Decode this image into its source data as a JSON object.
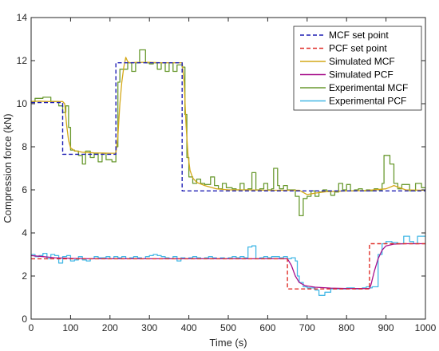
{
  "chart_data": {
    "type": "line",
    "xlabel": "Time (s)",
    "ylabel": "Compression force (kN)",
    "xlim": [
      0,
      1000
    ],
    "ylim": [
      0,
      14
    ],
    "xticks": [
      0,
      100,
      200,
      300,
      400,
      500,
      600,
      700,
      800,
      900,
      1000
    ],
    "yticks": [
      0,
      2,
      4,
      6,
      8,
      10,
      12,
      14
    ],
    "grid": false,
    "legend_position": "top-right",
    "series": [
      {
        "name": "MCF set point",
        "color": "#1f1fb4",
        "style": "dashed",
        "points": [
          [
            0,
            10.05
          ],
          [
            80,
            10.05
          ],
          [
            80,
            7.65
          ],
          [
            215,
            7.65
          ],
          [
            215,
            11.9
          ],
          [
            383,
            11.9
          ],
          [
            383,
            5.95
          ],
          [
            1000,
            5.95
          ]
        ]
      },
      {
        "name": "PCF set point",
        "color": "#e0302a",
        "style": "dashed",
        "points": [
          [
            0,
            2.8
          ],
          [
            650,
            2.8
          ],
          [
            650,
            1.4
          ],
          [
            858,
            1.4
          ],
          [
            858,
            3.5
          ],
          [
            1000,
            3.5
          ]
        ]
      },
      {
        "name": "Simulated MCF",
        "color": "#d4a818",
        "style": "solid",
        "points": [
          [
            0,
            10.1
          ],
          [
            20,
            10.12
          ],
          [
            40,
            10.1
          ],
          [
            80,
            10.1
          ],
          [
            85,
            10.0
          ],
          [
            90,
            9.0
          ],
          [
            95,
            8.3
          ],
          [
            100,
            7.95
          ],
          [
            110,
            7.82
          ],
          [
            130,
            7.75
          ],
          [
            160,
            7.72
          ],
          [
            200,
            7.7
          ],
          [
            215,
            7.7
          ],
          [
            220,
            8.5
          ],
          [
            225,
            10.0
          ],
          [
            230,
            11.0
          ],
          [
            235,
            11.7
          ],
          [
            240,
            12.15
          ],
          [
            245,
            11.95
          ],
          [
            250,
            11.9
          ],
          [
            270,
            11.92
          ],
          [
            300,
            11.92
          ],
          [
            330,
            11.9
          ],
          [
            360,
            11.9
          ],
          [
            383,
            11.9
          ],
          [
            388,
            11.0
          ],
          [
            393,
            9.0
          ],
          [
            398,
            7.6
          ],
          [
            403,
            6.9
          ],
          [
            410,
            6.55
          ],
          [
            420,
            6.35
          ],
          [
            440,
            6.2
          ],
          [
            470,
            6.05
          ],
          [
            500,
            6.0
          ],
          [
            550,
            6.0
          ],
          [
            600,
            5.98
          ],
          [
            650,
            5.98
          ],
          [
            680,
            5.98
          ],
          [
            700,
            5.78
          ],
          [
            720,
            5.85
          ],
          [
            750,
            5.92
          ],
          [
            800,
            5.95
          ],
          [
            850,
            5.97
          ],
          [
            900,
            6.05
          ],
          [
            920,
            6.2
          ],
          [
            950,
            6.0
          ],
          [
            1000,
            5.98
          ]
        ]
      },
      {
        "name": "Simulated PCF",
        "color": "#a8108c",
        "style": "solid",
        "points": [
          [
            0,
            2.95
          ],
          [
            30,
            2.9
          ],
          [
            60,
            2.85
          ],
          [
            100,
            2.82
          ],
          [
            150,
            2.8
          ],
          [
            200,
            2.8
          ],
          [
            250,
            2.8
          ],
          [
            300,
            2.8
          ],
          [
            350,
            2.8
          ],
          [
            400,
            2.8
          ],
          [
            450,
            2.8
          ],
          [
            500,
            2.8
          ],
          [
            550,
            2.8
          ],
          [
            600,
            2.8
          ],
          [
            650,
            2.8
          ],
          [
            660,
            2.5
          ],
          [
            670,
            2.0
          ],
          [
            680,
            1.7
          ],
          [
            695,
            1.55
          ],
          [
            720,
            1.48
          ],
          [
            760,
            1.44
          ],
          [
            800,
            1.42
          ],
          [
            858,
            1.42
          ],
          [
            862,
            1.6
          ],
          [
            870,
            2.2
          ],
          [
            880,
            2.8
          ],
          [
            890,
            3.2
          ],
          [
            900,
            3.4
          ],
          [
            920,
            3.48
          ],
          [
            950,
            3.5
          ],
          [
            1000,
            3.5
          ]
        ]
      },
      {
        "name": "Experimental MCF",
        "color": "#6a9a30",
        "style": "step",
        "points": [
          [
            0,
            10.1
          ],
          [
            10,
            10.25
          ],
          [
            30,
            10.3
          ],
          [
            50,
            10.1
          ],
          [
            70,
            9.9
          ],
          [
            80,
            9.6
          ],
          [
            88,
            9.9
          ],
          [
            95,
            8.9
          ],
          [
            100,
            7.85
          ],
          [
            110,
            7.8
          ],
          [
            120,
            7.6
          ],
          [
            130,
            7.2
          ],
          [
            138,
            7.8
          ],
          [
            150,
            7.5
          ],
          [
            160,
            7.7
          ],
          [
            170,
            7.3
          ],
          [
            180,
            7.7
          ],
          [
            190,
            7.4
          ],
          [
            205,
            7.3
          ],
          [
            215,
            8.0
          ],
          [
            220,
            11.0
          ],
          [
            225,
            11.6
          ],
          [
            235,
            11.6
          ],
          [
            245,
            11.9
          ],
          [
            255,
            11.5
          ],
          [
            265,
            11.9
          ],
          [
            275,
            12.5
          ],
          [
            290,
            11.9
          ],
          [
            300,
            11.85
          ],
          [
            310,
            11.9
          ],
          [
            320,
            11.6
          ],
          [
            330,
            11.9
          ],
          [
            340,
            11.5
          ],
          [
            350,
            11.9
          ],
          [
            360,
            11.5
          ],
          [
            370,
            11.8
          ],
          [
            383,
            11.7
          ],
          [
            390,
            9.5
          ],
          [
            395,
            7.5
          ],
          [
            400,
            6.6
          ],
          [
            410,
            6.3
          ],
          [
            420,
            6.5
          ],
          [
            430,
            6.3
          ],
          [
            440,
            6.25
          ],
          [
            455,
            6.6
          ],
          [
            465,
            6.2
          ],
          [
            475,
            6.05
          ],
          [
            485,
            6.3
          ],
          [
            495,
            6.1
          ],
          [
            510,
            6.05
          ],
          [
            520,
            6.0
          ],
          [
            530,
            6.3
          ],
          [
            540,
            6.0
          ],
          [
            550,
            6.05
          ],
          [
            560,
            6.8
          ],
          [
            570,
            6.0
          ],
          [
            580,
            6.05
          ],
          [
            590,
            6.3
          ],
          [
            600,
            6.0
          ],
          [
            610,
            6.05
          ],
          [
            615,
            7.0
          ],
          [
            625,
            6.2
          ],
          [
            630,
            6.05
          ],
          [
            640,
            6.2
          ],
          [
            650,
            6.0
          ],
          [
            660,
            6.0
          ],
          [
            670,
            5.7
          ],
          [
            680,
            4.8
          ],
          [
            690,
            5.6
          ],
          [
            700,
            5.7
          ],
          [
            710,
            5.95
          ],
          [
            720,
            5.7
          ],
          [
            730,
            5.9
          ],
          [
            740,
            6.0
          ],
          [
            750,
            5.95
          ],
          [
            760,
            5.75
          ],
          [
            770,
            5.9
          ],
          [
            780,
            6.3
          ],
          [
            790,
            6.0
          ],
          [
            800,
            6.25
          ],
          [
            810,
            5.95
          ],
          [
            820,
            6.0
          ],
          [
            830,
            6.05
          ],
          [
            840,
            5.95
          ],
          [
            850,
            6.0
          ],
          [
            860,
            5.95
          ],
          [
            870,
            6.05
          ],
          [
            880,
            6.0
          ],
          [
            890,
            6.3
          ],
          [
            895,
            7.6
          ],
          [
            910,
            7.2
          ],
          [
            920,
            6.3
          ],
          [
            930,
            6.05
          ],
          [
            940,
            6.25
          ],
          [
            960,
            5.95
          ],
          [
            975,
            6.3
          ],
          [
            990,
            6.1
          ],
          [
            1000,
            6.1
          ]
        ]
      },
      {
        "name": "Experimental PCF",
        "color": "#44b8e6",
        "style": "step",
        "points": [
          [
            0,
            3.0
          ],
          [
            10,
            2.9
          ],
          [
            20,
            2.95
          ],
          [
            30,
            3.05
          ],
          [
            40,
            2.8
          ],
          [
            50,
            3.0
          ],
          [
            60,
            2.95
          ],
          [
            70,
            2.6
          ],
          [
            80,
            2.9
          ],
          [
            90,
            2.95
          ],
          [
            100,
            2.7
          ],
          [
            110,
            2.75
          ],
          [
            120,
            2.9
          ],
          [
            130,
            2.75
          ],
          [
            140,
            2.7
          ],
          [
            150,
            2.8
          ],
          [
            160,
            2.9
          ],
          [
            170,
            2.85
          ],
          [
            180,
            2.85
          ],
          [
            190,
            2.9
          ],
          [
            200,
            2.8
          ],
          [
            210,
            2.9
          ],
          [
            220,
            2.85
          ],
          [
            230,
            2.9
          ],
          [
            240,
            2.8
          ],
          [
            250,
            2.85
          ],
          [
            260,
            2.9
          ],
          [
            270,
            2.85
          ],
          [
            280,
            2.8
          ],
          [
            290,
            2.9
          ],
          [
            300,
            2.95
          ],
          [
            310,
            3.0
          ],
          [
            320,
            2.95
          ],
          [
            330,
            2.9
          ],
          [
            340,
            2.85
          ],
          [
            350,
            2.8
          ],
          [
            360,
            2.9
          ],
          [
            370,
            2.7
          ],
          [
            380,
            2.85
          ],
          [
            390,
            2.8
          ],
          [
            400,
            2.85
          ],
          [
            410,
            2.9
          ],
          [
            420,
            2.85
          ],
          [
            430,
            2.8
          ],
          [
            440,
            2.85
          ],
          [
            450,
            2.9
          ],
          [
            460,
            2.85
          ],
          [
            470,
            2.8
          ],
          [
            480,
            2.85
          ],
          [
            490,
            2.8
          ],
          [
            500,
            2.85
          ],
          [
            510,
            2.9
          ],
          [
            520,
            2.85
          ],
          [
            530,
            2.9
          ],
          [
            540,
            2.85
          ],
          [
            550,
            3.35
          ],
          [
            560,
            3.4
          ],
          [
            570,
            2.8
          ],
          [
            580,
            2.85
          ],
          [
            590,
            2.9
          ],
          [
            600,
            2.85
          ],
          [
            610,
            2.9
          ],
          [
            620,
            2.9
          ],
          [
            630,
            2.85
          ],
          [
            640,
            2.9
          ],
          [
            650,
            2.8
          ],
          [
            660,
            2.85
          ],
          [
            670,
            2.7
          ],
          [
            675,
            2.0
          ],
          [
            680,
            1.7
          ],
          [
            690,
            1.5
          ],
          [
            700,
            1.45
          ],
          [
            710,
            1.45
          ],
          [
            720,
            1.35
          ],
          [
            730,
            1.1
          ],
          [
            745,
            1.25
          ],
          [
            760,
            1.4
          ],
          [
            780,
            1.4
          ],
          [
            800,
            1.45
          ],
          [
            820,
            1.4
          ],
          [
            840,
            1.45
          ],
          [
            850,
            1.5
          ],
          [
            860,
            1.45
          ],
          [
            865,
            1.5
          ],
          [
            880,
            3.0
          ],
          [
            890,
            3.5
          ],
          [
            900,
            3.6
          ],
          [
            915,
            3.55
          ],
          [
            930,
            3.5
          ],
          [
            945,
            3.85
          ],
          [
            960,
            3.6
          ],
          [
            970,
            3.5
          ],
          [
            980,
            3.85
          ],
          [
            1000,
            3.85
          ]
        ]
      }
    ]
  }
}
